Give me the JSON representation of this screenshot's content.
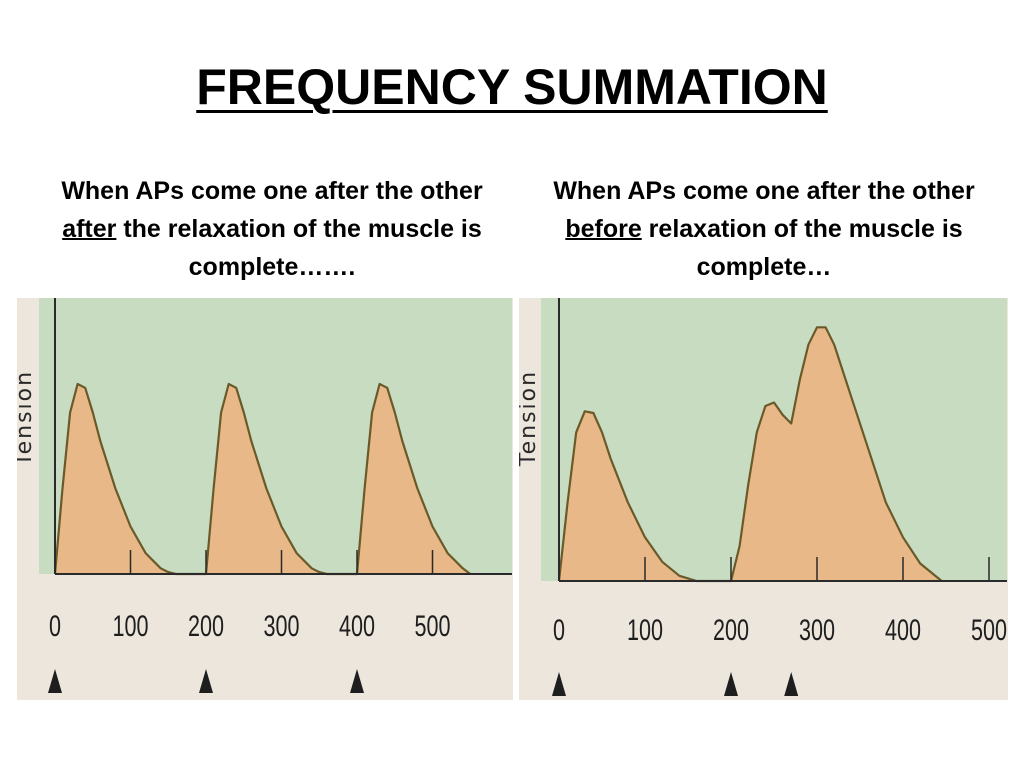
{
  "slide": {
    "title": "FREQUENCY SUMMATION"
  },
  "captions": {
    "left": {
      "pre": "When APs come one after the other ",
      "emph": "after",
      "post": " the relaxation of the muscle is complete……."
    },
    "right": {
      "pre": "When APs come one after the other ",
      "emph": "before",
      "post": " relaxation of the muscle is complete…"
    }
  },
  "colors": {
    "plot_background": "#c8dcc2",
    "panel_background": "#ece6dc",
    "curve_fill": "#e8b888",
    "curve_stroke": "#6a5a2a",
    "axis": "#2a2a2a",
    "marker": "#1e1e1e"
  },
  "chart_data": [
    {
      "type": "area",
      "ylabel": "Tension",
      "xlim": [
        0,
        580
      ],
      "ylim": [
        0,
        1.2
      ],
      "x_ticks": [
        0,
        100,
        200,
        300,
        400,
        500
      ],
      "stimulus_markers": [
        0,
        200,
        400
      ],
      "grid": false,
      "x": [
        0,
        10,
        20,
        30,
        40,
        50,
        60,
        80,
        100,
        120,
        140,
        150,
        160,
        170,
        180,
        190,
        200,
        210,
        220,
        230,
        240,
        250,
        260,
        280,
        300,
        320,
        340,
        350,
        360,
        370,
        380,
        390,
        400,
        410,
        420,
        430,
        440,
        450,
        460,
        480,
        500,
        520,
        540,
        550
      ],
      "y": [
        0.0,
        0.45,
        0.85,
        1.0,
        0.98,
        0.85,
        0.7,
        0.45,
        0.25,
        0.11,
        0.03,
        0.01,
        0.0,
        0.0,
        0.0,
        0.0,
        0.0,
        0.45,
        0.85,
        1.0,
        0.98,
        0.85,
        0.7,
        0.45,
        0.25,
        0.11,
        0.03,
        0.01,
        0.0,
        0.0,
        0.0,
        0.0,
        0.0,
        0.45,
        0.85,
        1.0,
        0.98,
        0.85,
        0.7,
        0.45,
        0.25,
        0.11,
        0.03,
        0.0
      ]
    },
    {
      "type": "area",
      "ylabel": "Tension",
      "xlim": [
        0,
        520
      ],
      "ylim": [
        0,
        1.5
      ],
      "x_ticks": [
        0,
        100,
        200,
        300,
        400,
        500
      ],
      "stimulus_markers": [
        0,
        200,
        270
      ],
      "grid": false,
      "x": [
        0,
        10,
        20,
        30,
        40,
        50,
        60,
        80,
        100,
        120,
        140,
        160,
        180,
        200,
        210,
        220,
        230,
        240,
        250,
        260,
        270,
        280,
        290,
        300,
        310,
        320,
        330,
        340,
        360,
        380,
        400,
        420,
        440,
        445
      ],
      "y": [
        0.0,
        0.45,
        0.85,
        0.97,
        0.96,
        0.85,
        0.7,
        0.45,
        0.25,
        0.11,
        0.03,
        0.0,
        0.0,
        0.0,
        0.2,
        0.55,
        0.85,
        1.0,
        1.02,
        0.95,
        0.9,
        1.15,
        1.35,
        1.45,
        1.45,
        1.35,
        1.2,
        1.05,
        0.75,
        0.45,
        0.25,
        0.1,
        0.02,
        0.0
      ]
    }
  ]
}
